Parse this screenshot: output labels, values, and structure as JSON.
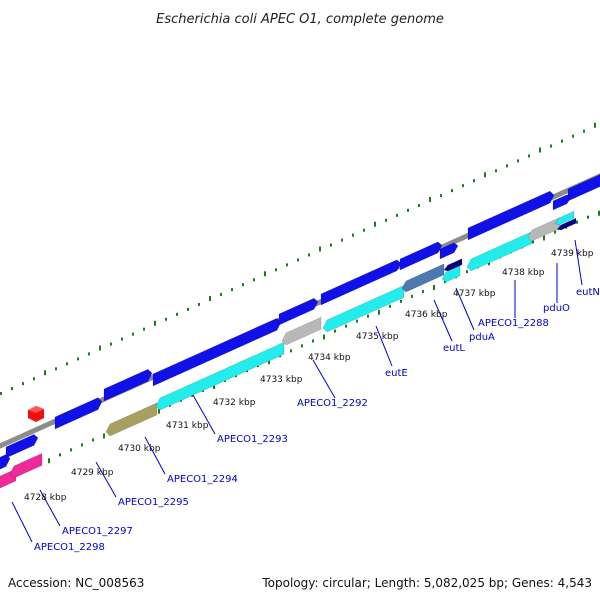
{
  "title": "Escherichia coli APEC O1, complete genome",
  "footer": {
    "accession": "Accession: NC_008563",
    "summary": "Topology: circular; Length: 5,082,025 bp; Genes: 4,543"
  },
  "colors": {
    "background": "#ffffff",
    "backbone": "#8c8c8c",
    "tick_green": "#1f7a1f",
    "label_blue": "#0000cc",
    "cds_forward": "#1010e8",
    "cds_reverse": "#22ecec",
    "pseudogene": "#a8a060",
    "hypothetical": "#b8b8b8",
    "magenta": "#ee2a9a",
    "steel_blue": "#4a7ab0",
    "navy": "#000080",
    "marker_red": "#ee1111"
  },
  "kbp_ticks": [
    "4728 kbp",
    "4729 kbp",
    "4730 kbp",
    "4731 kbp",
    "4732 kbp",
    "4733 kbp",
    "4734 kbp",
    "4735 kbp",
    "4736 kbp",
    "4737 kbp",
    "4738 kbp",
    "4739 kbp"
  ],
  "gene_labels": [
    "APECO1_2298",
    "APECO1_2297",
    "APECO1_2295",
    "APECO1_2294",
    "APECO1_2293",
    "APECO1_2292",
    "eutE",
    "eutL",
    "pduA",
    "APECO1_2288",
    "pduO",
    "eutN"
  ]
}
